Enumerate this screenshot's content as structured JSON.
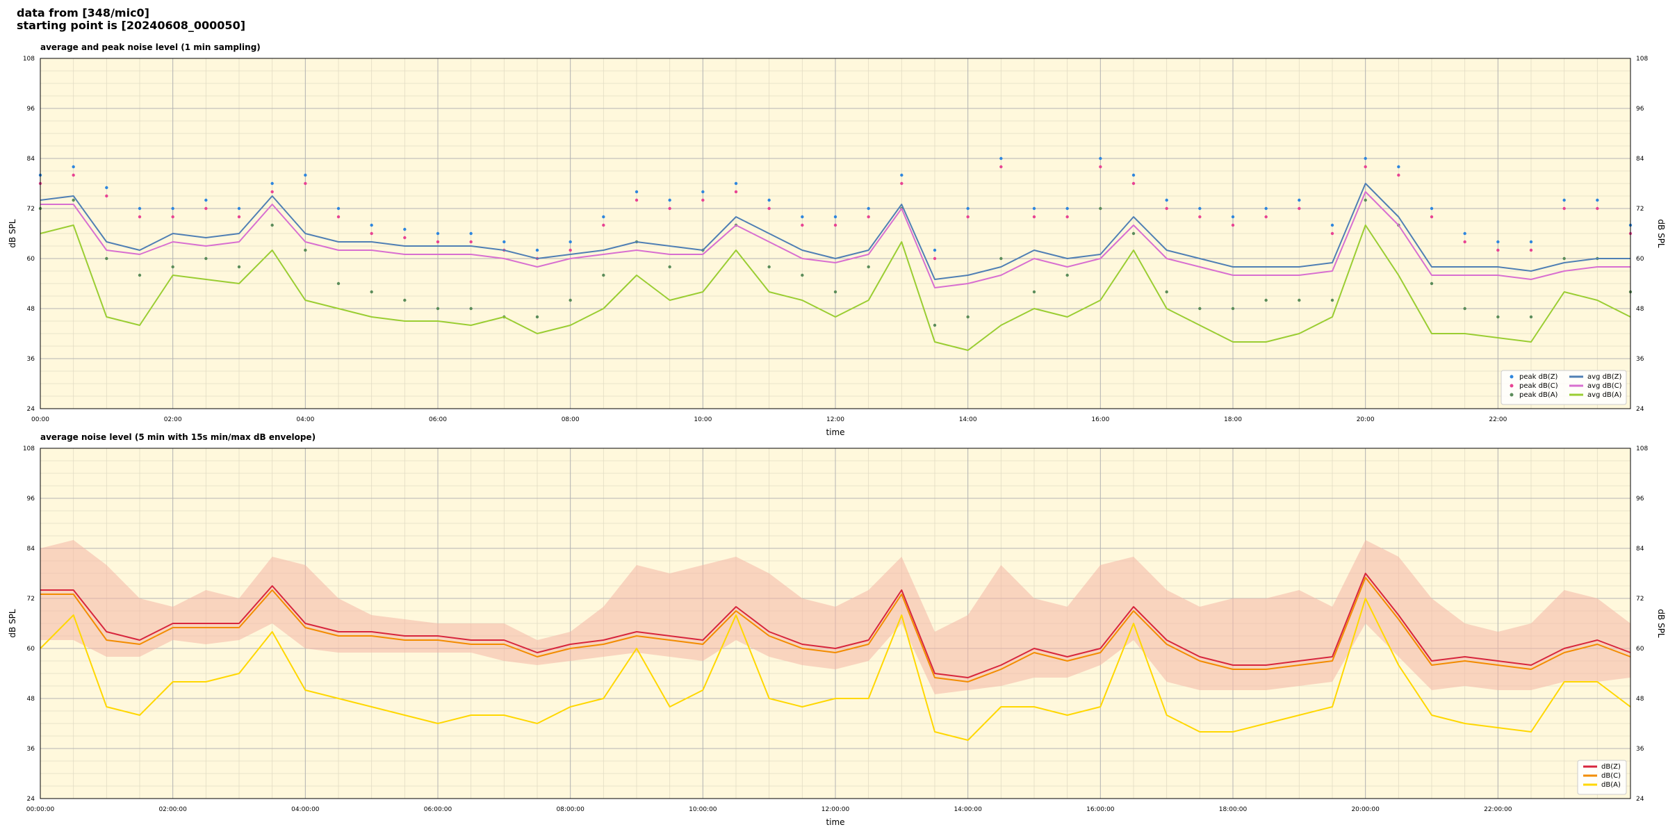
{
  "header": {
    "line1": "data from [348/mic0]",
    "line2": "starting point is [20240608_000050]"
  },
  "colors": {
    "background": "#fff8dc",
    "grid_major": "#b4b4b4",
    "grid_minor": "#e2dcc4",
    "peak_z": "#2e86de",
    "peak_c": "#e84393",
    "peak_a": "#5b8c5a",
    "avg_z": "#4f7fb4",
    "avg_c": "#d86fd0",
    "avg_a": "#9acd32",
    "dbz": "#d7263d",
    "dbc": "#f28c00",
    "dba": "#ffd700",
    "envelope": "#f4b6a6"
  },
  "chart_data": [
    {
      "type": "line",
      "title": "average and peak noise level (1 min sampling)",
      "xlabel": "time",
      "ylabel": "dB SPL",
      "xlim": [
        0,
        24
      ],
      "ylim": [
        24,
        108
      ],
      "xticks": [
        "00:00",
        "02:00",
        "04:00",
        "06:00",
        "08:00",
        "10:00",
        "12:00",
        "14:00",
        "16:00",
        "18:00",
        "20:00",
        "22:00"
      ],
      "yticks": [
        24,
        36,
        48,
        60,
        72,
        84,
        96,
        108
      ],
      "grid": true,
      "legend_position": "bottom-right",
      "x": [
        0,
        0.5,
        1,
        1.5,
        2,
        2.5,
        3,
        3.5,
        4,
        4.5,
        5,
        5.5,
        6,
        6.5,
        7,
        7.5,
        8,
        8.5,
        9,
        9.5,
        10,
        10.5,
        11,
        11.5,
        12,
        12.5,
        13,
        13.5,
        14,
        14.5,
        15,
        15.5,
        16,
        16.5,
        17,
        17.5,
        18,
        18.5,
        19,
        19.5,
        20,
        20.5,
        21,
        21.5,
        22,
        22.5,
        23,
        23.5,
        24
      ],
      "series": [
        {
          "name": "peak dB(Z)",
          "kind": "scatter",
          "color": "#2e86de",
          "values": [
            80,
            82,
            77,
            72,
            72,
            74,
            72,
            78,
            80,
            72,
            68,
            67,
            66,
            66,
            64,
            62,
            64,
            70,
            76,
            74,
            76,
            78,
            74,
            70,
            70,
            72,
            80,
            62,
            72,
            84,
            72,
            72,
            84,
            80,
            74,
            72,
            70,
            72,
            74,
            68,
            84,
            82,
            72,
            66,
            64,
            64,
            74,
            74,
            68
          ]
        },
        {
          "name": "peak dB(C)",
          "kind": "scatter",
          "color": "#e84393",
          "values": [
            78,
            80,
            75,
            70,
            70,
            72,
            70,
            76,
            78,
            70,
            66,
            65,
            64,
            64,
            62,
            60,
            62,
            68,
            74,
            72,
            74,
            76,
            72,
            68,
            68,
            70,
            78,
            60,
            70,
            82,
            70,
            70,
            82,
            78,
            72,
            70,
            68,
            70,
            72,
            66,
            82,
            80,
            70,
            64,
            62,
            62,
            72,
            72,
            66
          ]
        },
        {
          "name": "peak dB(A)",
          "kind": "scatter",
          "color": "#5b8c5a",
          "values": [
            72,
            74,
            60,
            56,
            58,
            60,
            58,
            68,
            62,
            54,
            52,
            50,
            48,
            48,
            46,
            46,
            50,
            56,
            64,
            58,
            62,
            68,
            58,
            56,
            52,
            58,
            72,
            44,
            46,
            60,
            52,
            56,
            72,
            66,
            52,
            48,
            48,
            50,
            50,
            50,
            74,
            68,
            54,
            48,
            46,
            46,
            60,
            60,
            52
          ]
        },
        {
          "name": "avg dB(Z)",
          "kind": "line",
          "color": "#4f7fb4",
          "values": [
            74,
            75,
            64,
            62,
            66,
            65,
            66,
            75,
            66,
            64,
            64,
            63,
            63,
            63,
            62,
            60,
            61,
            62,
            64,
            63,
            62,
            70,
            66,
            62,
            60,
            62,
            73,
            55,
            56,
            58,
            62,
            60,
            61,
            70,
            62,
            60,
            58,
            58,
            58,
            59,
            78,
            70,
            58,
            58,
            58,
            57,
            59,
            60,
            60
          ]
        },
        {
          "name": "avg dB(C)",
          "kind": "line",
          "color": "#d86fd0",
          "values": [
            73,
            73,
            62,
            61,
            64,
            63,
            64,
            73,
            64,
            62,
            62,
            61,
            61,
            61,
            60,
            58,
            60,
            61,
            62,
            61,
            61,
            68,
            64,
            60,
            59,
            61,
            72,
            53,
            54,
            56,
            60,
            58,
            60,
            68,
            60,
            58,
            56,
            56,
            56,
            57,
            76,
            68,
            56,
            56,
            56,
            55,
            57,
            58,
            58
          ]
        },
        {
          "name": "avg dB(A)",
          "kind": "line",
          "color": "#9acd32",
          "values": [
            66,
            68,
            46,
            44,
            56,
            55,
            54,
            62,
            50,
            48,
            46,
            45,
            45,
            44,
            46,
            42,
            44,
            48,
            56,
            50,
            52,
            62,
            52,
            50,
            46,
            50,
            64,
            40,
            38,
            44,
            48,
            46,
            50,
            62,
            48,
            44,
            40,
            40,
            42,
            46,
            68,
            56,
            42,
            42,
            41,
            40,
            52,
            50,
            46
          ]
        }
      ]
    },
    {
      "type": "line",
      "title": "average noise level (5 min with 15s min/max dB envelope)",
      "xlabel": "time",
      "ylabel": "dB SPL",
      "xlim": [
        0,
        24
      ],
      "ylim": [
        24,
        108
      ],
      "xticks": [
        "00:00:00",
        "02:00:00",
        "04:00:00",
        "06:00:00",
        "08:00:00",
        "10:00:00",
        "12:00:00",
        "14:00:00",
        "16:00:00",
        "18:00:00",
        "20:00:00",
        "22:00:00"
      ],
      "yticks": [
        24,
        36,
        48,
        60,
        72,
        84,
        96,
        108
      ],
      "grid": true,
      "legend_position": "bottom-right",
      "x": [
        0,
        0.5,
        1,
        1.5,
        2,
        2.5,
        3,
        3.5,
        4,
        4.5,
        5,
        5.5,
        6,
        6.5,
        7,
        7.5,
        8,
        8.5,
        9,
        9.5,
        10,
        10.5,
        11,
        11.5,
        12,
        12.5,
        13,
        13.5,
        14,
        14.5,
        15,
        15.5,
        16,
        16.5,
        17,
        17.5,
        18,
        18.5,
        19,
        19.5,
        20,
        20.5,
        21,
        21.5,
        22,
        22.5,
        23,
        23.5,
        24
      ],
      "envelope": {
        "upper": [
          84,
          86,
          80,
          72,
          70,
          74,
          72,
          82,
          80,
          72,
          68,
          67,
          66,
          66,
          66,
          62,
          64,
          70,
          80,
          78,
          80,
          82,
          78,
          72,
          70,
          74,
          82,
          64,
          68,
          80,
          72,
          70,
          80,
          82,
          74,
          70,
          72,
          72,
          74,
          70,
          86,
          82,
          72,
          66,
          64,
          66,
          74,
          72,
          66
        ],
        "lower": [
          62,
          62,
          58,
          58,
          62,
          61,
          62,
          66,
          60,
          59,
          59,
          59,
          59,
          59,
          57,
          56,
          57,
          58,
          59,
          58,
          57,
          62,
          58,
          56,
          55,
          57,
          66,
          49,
          50,
          51,
          53,
          53,
          56,
          62,
          52,
          50,
          50,
          50,
          51,
          52,
          66,
          58,
          50,
          51,
          50,
          50,
          52,
          52,
          53
        ]
      },
      "series": [
        {
          "name": "dB(Z)",
          "color": "#d7263d",
          "values": [
            74,
            74,
            64,
            62,
            66,
            66,
            66,
            75,
            66,
            64,
            64,
            63,
            63,
            62,
            62,
            59,
            61,
            62,
            64,
            63,
            62,
            70,
            64,
            61,
            60,
            62,
            74,
            54,
            53,
            56,
            60,
            58,
            60,
            70,
            62,
            58,
            56,
            56,
            57,
            58,
            78,
            68,
            57,
            58,
            57,
            56,
            60,
            62,
            59
          ]
        },
        {
          "name": "dB(C)",
          "color": "#f28c00",
          "values": [
            73,
            73,
            62,
            61,
            65,
            65,
            65,
            74,
            65,
            63,
            63,
            62,
            62,
            61,
            61,
            58,
            60,
            61,
            63,
            62,
            61,
            69,
            63,
            60,
            59,
            61,
            73,
            53,
            52,
            55,
            59,
            57,
            59,
            69,
            61,
            57,
            55,
            55,
            56,
            57,
            77,
            67,
            56,
            57,
            56,
            55,
            59,
            61,
            58
          ]
        },
        {
          "name": "dB(A)",
          "color": "#ffd700",
          "values": [
            60,
            68,
            46,
            44,
            52,
            52,
            54,
            64,
            50,
            48,
            46,
            44,
            42,
            44,
            44,
            42,
            46,
            48,
            60,
            46,
            50,
            68,
            48,
            46,
            48,
            48,
            68,
            40,
            38,
            46,
            46,
            44,
            46,
            66,
            44,
            40,
            40,
            42,
            44,
            46,
            72,
            56,
            44,
            42,
            41,
            40,
            52,
            52,
            46
          ]
        }
      ]
    }
  ]
}
